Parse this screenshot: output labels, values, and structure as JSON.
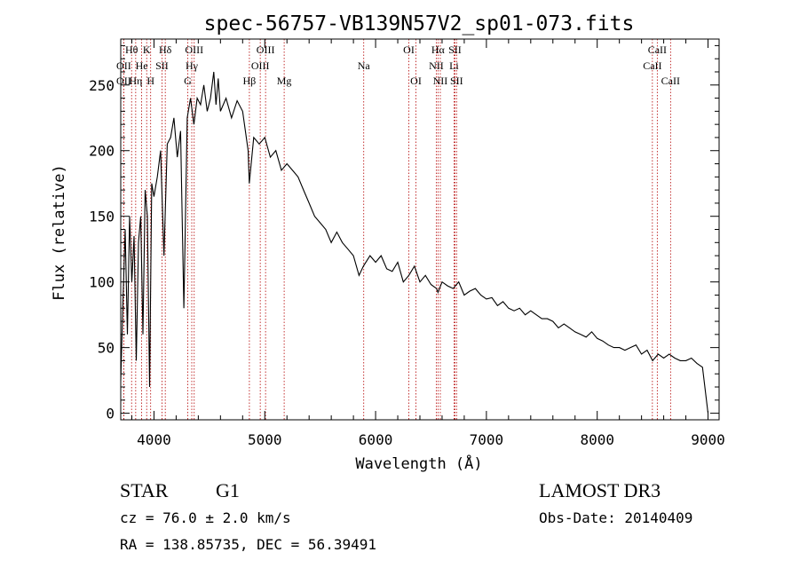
{
  "chart_data": {
    "type": "line",
    "title": "spec-56757-VB139N57V2_sp01-073.fits",
    "xlabel": "Wavelength (Å)",
    "ylabel": "Flux (relative)",
    "xlim": [
      3700,
      9100
    ],
    "ylim": [
      -5,
      285
    ],
    "xticks": [
      4000,
      5000,
      6000,
      7000,
      8000,
      9000
    ],
    "yticks": [
      0,
      50,
      100,
      150,
      200,
      250
    ],
    "grid": false,
    "series": [
      {
        "name": "flux",
        "x": [
          3700,
          3720,
          3740,
          3760,
          3780,
          3800,
          3820,
          3840,
          3860,
          3880,
          3900,
          3920,
          3940,
          3960,
          3980,
          4000,
          4030,
          4060,
          4090,
          4120,
          4150,
          4180,
          4210,
          4240,
          4270,
          4300,
          4330,
          4360,
          4390,
          4420,
          4450,
          4480,
          4510,
          4540,
          4560,
          4580,
          4600,
          4650,
          4700,
          4750,
          4800,
          4850,
          4860,
          4900,
          4950,
          5000,
          5050,
          5100,
          5150,
          5200,
          5250,
          5300,
          5350,
          5400,
          5450,
          5500,
          5550,
          5600,
          5650,
          5700,
          5750,
          5800,
          5850,
          5890,
          5950,
          6000,
          6050,
          6100,
          6150,
          6200,
          6250,
          6300,
          6350,
          6400,
          6450,
          6500,
          6550,
          6563,
          6600,
          6650,
          6700,
          6750,
          6800,
          6850,
          6900,
          6950,
          7000,
          7050,
          7100,
          7150,
          7200,
          7250,
          7300,
          7350,
          7400,
          7450,
          7500,
          7550,
          7600,
          7650,
          7700,
          7750,
          7800,
          7850,
          7900,
          7950,
          8000,
          8050,
          8100,
          8150,
          8200,
          8250,
          8300,
          8350,
          8400,
          8450,
          8500,
          8550,
          8600,
          8650,
          8700,
          8750,
          8800,
          8850,
          8900,
          8950,
          9000
        ],
        "y": [
          25,
          85,
          140,
          60,
          150,
          100,
          135,
          40,
          130,
          150,
          60,
          170,
          150,
          20,
          175,
          165,
          180,
          200,
          120,
          205,
          210,
          225,
          195,
          215,
          80,
          225,
          240,
          220,
          240,
          235,
          250,
          230,
          240,
          260,
          235,
          255,
          230,
          240,
          225,
          238,
          230,
          200,
          175,
          210,
          205,
          210,
          195,
          200,
          185,
          190,
          185,
          180,
          170,
          160,
          150,
          145,
          140,
          130,
          138,
          130,
          125,
          120,
          105,
          112,
          120,
          115,
          120,
          110,
          108,
          115,
          100,
          105,
          112,
          100,
          105,
          98,
          95,
          92,
          100,
          97,
          95,
          100,
          90,
          93,
          95,
          90,
          87,
          88,
          82,
          85,
          80,
          78,
          80,
          75,
          78,
          75,
          72,
          72,
          70,
          65,
          68,
          65,
          62,
          60,
          58,
          62,
          57,
          55,
          52,
          50,
          50,
          48,
          50,
          52,
          45,
          48,
          40,
          45,
          42,
          45,
          42,
          40,
          40,
          42,
          38,
          35,
          0
        ]
      }
    ],
    "lines": [
      {
        "label": "Hθ",
        "wavelength": 3798,
        "row": 0
      },
      {
        "label": "OII",
        "wavelength": 3727,
        "row": 1
      },
      {
        "label": "OII",
        "wavelength": 3727,
        "row": 2
      },
      {
        "label": "He",
        "wavelength": 3889,
        "row": 1
      },
      {
        "label": "Hη",
        "wavelength": 3835,
        "row": 2
      },
      {
        "label": "K",
        "wavelength": 3934,
        "row": 0
      },
      {
        "label": "H",
        "wavelength": 3970,
        "row": 2
      },
      {
        "label": "SII",
        "wavelength": 4072,
        "row": 1
      },
      {
        "label": "Hδ",
        "wavelength": 4102,
        "row": 0
      },
      {
        "label": "OIII",
        "wavelength": 4363,
        "row": 0
      },
      {
        "label": "Hγ",
        "wavelength": 4341,
        "row": 1
      },
      {
        "label": "G",
        "wavelength": 4305,
        "row": 2
      },
      {
        "label": "Hβ",
        "wavelength": 4861,
        "row": 2
      },
      {
        "label": "OIII",
        "wavelength": 5007,
        "row": 0
      },
      {
        "label": "OIII",
        "wavelength": 4959,
        "row": 1
      },
      {
        "label": "Mg",
        "wavelength": 5175,
        "row": 2
      },
      {
        "label": "Na",
        "wavelength": 5893,
        "row": 1
      },
      {
        "label": "OI",
        "wavelength": 6300,
        "row": 0
      },
      {
        "label": "OI",
        "wavelength": 6364,
        "row": 2
      },
      {
        "label": "Hα",
        "wavelength": 6563,
        "row": 0
      },
      {
        "label": "SII",
        "wavelength": 6716,
        "row": 0
      },
      {
        "label": "NII",
        "wavelength": 6548,
        "row": 1
      },
      {
        "label": "Li",
        "wavelength": 6708,
        "row": 1
      },
      {
        "label": "NII",
        "wavelength": 6584,
        "row": 2
      },
      {
        "label": "SII",
        "wavelength": 6731,
        "row": 2
      },
      {
        "label": "CaII",
        "wavelength": 8542,
        "row": 0
      },
      {
        "label": "CaII",
        "wavelength": 8498,
        "row": 1
      },
      {
        "label": "CaII",
        "wavelength": 8662,
        "row": 2
      }
    ]
  },
  "info": {
    "object_class": "STAR",
    "subclass": "G1",
    "survey": "LAMOST DR3",
    "velocity": "cz = 76.0 ± 2.0 km/s",
    "obs_date": "Obs-Date: 20140409",
    "coords": "RA = 138.85735, DEC =  56.39491"
  },
  "colors": {
    "line_marker": "#b40000",
    "spectrum": "#000000"
  }
}
